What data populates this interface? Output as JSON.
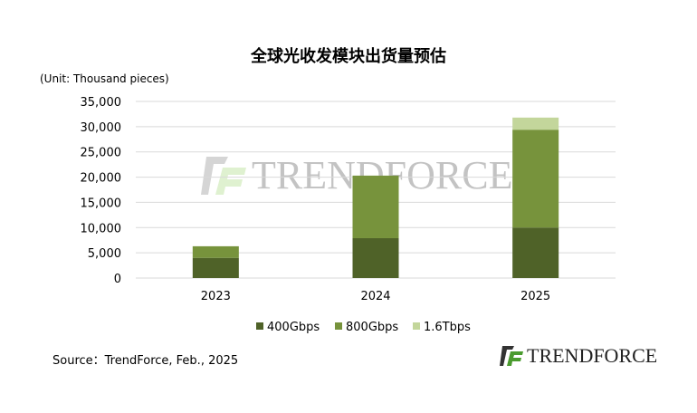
{
  "chart_data": {
    "type": "bar",
    "stacked": true,
    "title": "全球光收发模块出货量预估",
    "ylabel": "(Unit: Thousand pieces)",
    "categories": [
      "2023",
      "2024",
      "2025"
    ],
    "series": [
      {
        "name": "400Gbps",
        "values": [
          4000,
          7900,
          10000
        ],
        "color": "#4f6228"
      },
      {
        "name": "800Gbps",
        "values": [
          2300,
          12400,
          19400
        ],
        "color": "#77933c"
      },
      {
        "name": "1.6Tbps",
        "values": [
          0,
          0,
          2400
        ],
        "color": "#c3d69b"
      }
    ],
    "ylim": [
      0,
      35000
    ],
    "yticks": [
      "0",
      "5,000",
      "10,000",
      "15,000",
      "20,000",
      "25,000",
      "30,000",
      "35,000"
    ],
    "grid": true,
    "legend": "bottom"
  },
  "source": "Source：TrendForce, Feb., 2025",
  "logo_text": "TRENDFORCE",
  "watermark_text": "TRENDFORCE"
}
